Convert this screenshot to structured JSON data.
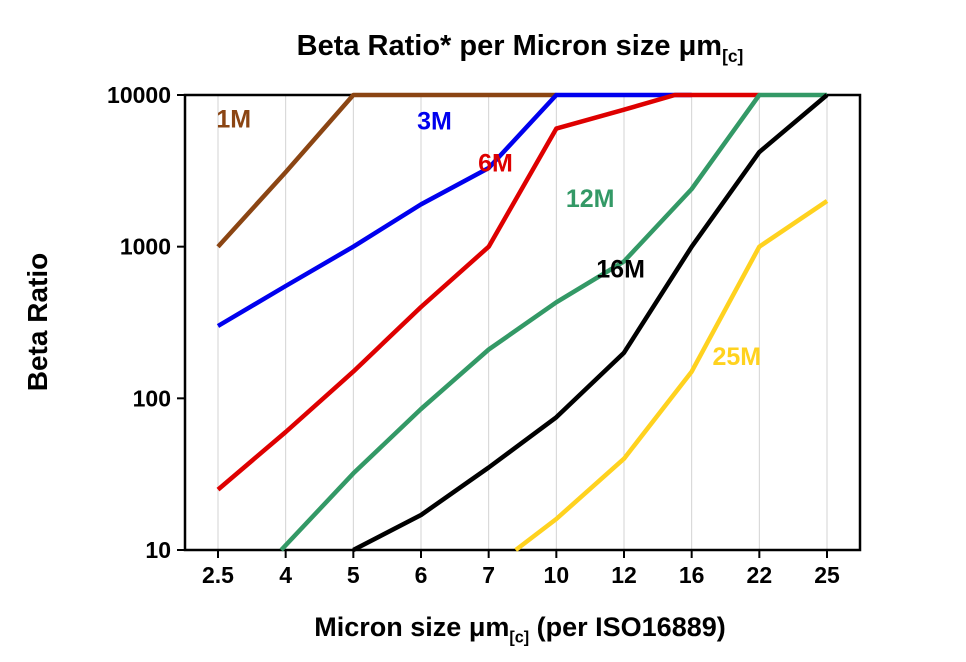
{
  "title": {
    "text": "Beta Ratio* per Micron size ",
    "mu": "μm",
    "sub": "[c]"
  },
  "y_axis": {
    "label": "Beta Ratio"
  },
  "x_axis": {
    "label_prefix": "Micron size ",
    "mu": "μm",
    "sub": "[c]",
    "label_suffix": " (per ISO16889)"
  },
  "chart_data": {
    "type": "line",
    "title": "Beta Ratio* per Micron size μm[c]",
    "xlabel": "Micron size μm[c] (per ISO16889)",
    "ylabel": "Beta Ratio",
    "x_scale": "category",
    "y_scale": "log",
    "ylim": [
      10,
      10000
    ],
    "grid": "vertical-light",
    "grid_color": "#d3d3d3",
    "categories": [
      2.5,
      4,
      5,
      6,
      7,
      10,
      12,
      16,
      22,
      25
    ],
    "x_tick_labels": [
      "2.5",
      "4",
      "5",
      "6",
      "7",
      "10",
      "12",
      "16",
      "22",
      "25"
    ],
    "y_ticks": [
      10,
      100,
      1000,
      10000
    ],
    "y_tick_labels": [
      "10",
      "100",
      "1000",
      "10000"
    ],
    "series": [
      {
        "name": "1M",
        "color": "#8B4513",
        "points": [
          [
            2.5,
            1000
          ],
          [
            4,
            3100
          ],
          [
            5,
            10000
          ],
          [
            10,
            10000
          ]
        ],
        "label": {
          "text": "1M",
          "x": 2.85,
          "y": 7000
        }
      },
      {
        "name": "3M",
        "color": "#0000EE",
        "points": [
          [
            2.5,
            300
          ],
          [
            4,
            550
          ],
          [
            5,
            1000
          ],
          [
            6,
            1900
          ],
          [
            7,
            3300
          ],
          [
            10,
            10000
          ],
          [
            16,
            10000
          ]
        ],
        "label": {
          "text": "3M",
          "x": 6.2,
          "y": 6800
        }
      },
      {
        "name": "6M",
        "color": "#DE0000",
        "points": [
          [
            2.5,
            25
          ],
          [
            4,
            60
          ],
          [
            5,
            150
          ],
          [
            6,
            400
          ],
          [
            7,
            1000
          ],
          [
            10,
            6000
          ],
          [
            12,
            8000
          ],
          [
            15,
            10000
          ],
          [
            22,
            10000
          ]
        ],
        "label": {
          "text": "6M",
          "x": 7.3,
          "y": 3600
        }
      },
      {
        "name": "12M",
        "color": "#339966",
        "points": [
          [
            3.9,
            10
          ],
          [
            5,
            32
          ],
          [
            6,
            85
          ],
          [
            7,
            210
          ],
          [
            10,
            430
          ],
          [
            12,
            800
          ],
          [
            16,
            2400
          ],
          [
            22,
            10000
          ],
          [
            25,
            10000
          ]
        ],
        "label": {
          "text": "12M",
          "x": 11,
          "y": 2100
        }
      },
      {
        "name": "16M",
        "color": "#000000",
        "points": [
          [
            5,
            10
          ],
          [
            6,
            17
          ],
          [
            7,
            35
          ],
          [
            10,
            75
          ],
          [
            12,
            200
          ],
          [
            16,
            1000
          ],
          [
            22,
            4200
          ],
          [
            25,
            10000
          ]
        ],
        "label": {
          "text": "16M",
          "x": 11.9,
          "y": 720
        }
      },
      {
        "name": "25M",
        "color": "#FFD21F",
        "points": [
          [
            8.2,
            10
          ],
          [
            10,
            16
          ],
          [
            12,
            40
          ],
          [
            16,
            150
          ],
          [
            22,
            1000
          ],
          [
            25,
            2000
          ]
        ],
        "label": {
          "text": "25M",
          "x": 20,
          "y": 190
        }
      }
    ]
  }
}
